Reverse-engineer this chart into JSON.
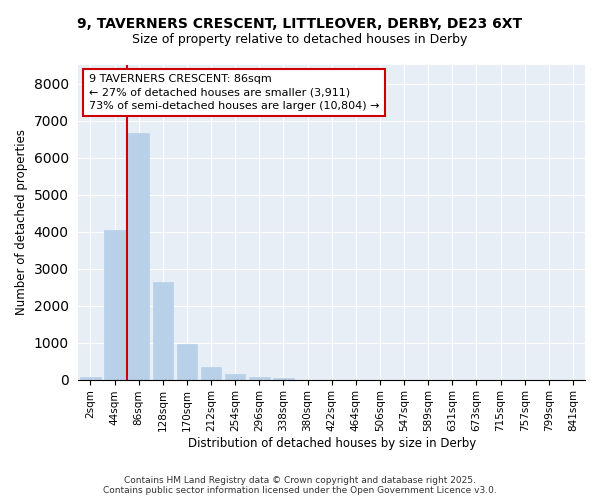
{
  "title": "9, TAVERNERS CRESCENT, LITTLEOVER, DERBY, DE23 6XT",
  "subtitle": "Size of property relative to detached houses in Derby",
  "xlabel": "Distribution of detached houses by size in Derby",
  "ylabel": "Number of detached properties",
  "categories": [
    "2sqm",
    "44sqm",
    "86sqm",
    "128sqm",
    "170sqm",
    "212sqm",
    "254sqm",
    "296sqm",
    "338sqm",
    "380sqm",
    "422sqm",
    "464sqm",
    "506sqm",
    "547sqm",
    "589sqm",
    "631sqm",
    "673sqm",
    "715sqm",
    "757sqm",
    "799sqm",
    "841sqm"
  ],
  "values": [
    80,
    4050,
    6650,
    2650,
    970,
    330,
    140,
    80,
    30,
    0,
    0,
    0,
    0,
    0,
    0,
    0,
    0,
    0,
    0,
    0,
    0
  ],
  "bar_color": "#b8d0e8",
  "bar_edgecolor": "#b8d0e8",
  "redline_index": 2,
  "redline_color": "#cc0000",
  "annotation_text": "9 TAVERNERS CRESCENT: 86sqm\n← 27% of detached houses are smaller (3,911)\n73% of semi-detached houses are larger (10,804) →",
  "annotation_box_color": "#cc0000",
  "ylim": [
    0,
    8500
  ],
  "yticks": [
    0,
    1000,
    2000,
    3000,
    4000,
    5000,
    6000,
    7000,
    8000
  ],
  "plot_bg_color": "#e8eef5",
  "fig_bg_color": "#ffffff",
  "grid_color": "#ffffff",
  "footer_line1": "Contains HM Land Registry data © Crown copyright and database right 2025.",
  "footer_line2": "Contains public sector information licensed under the Open Government Licence v3.0."
}
